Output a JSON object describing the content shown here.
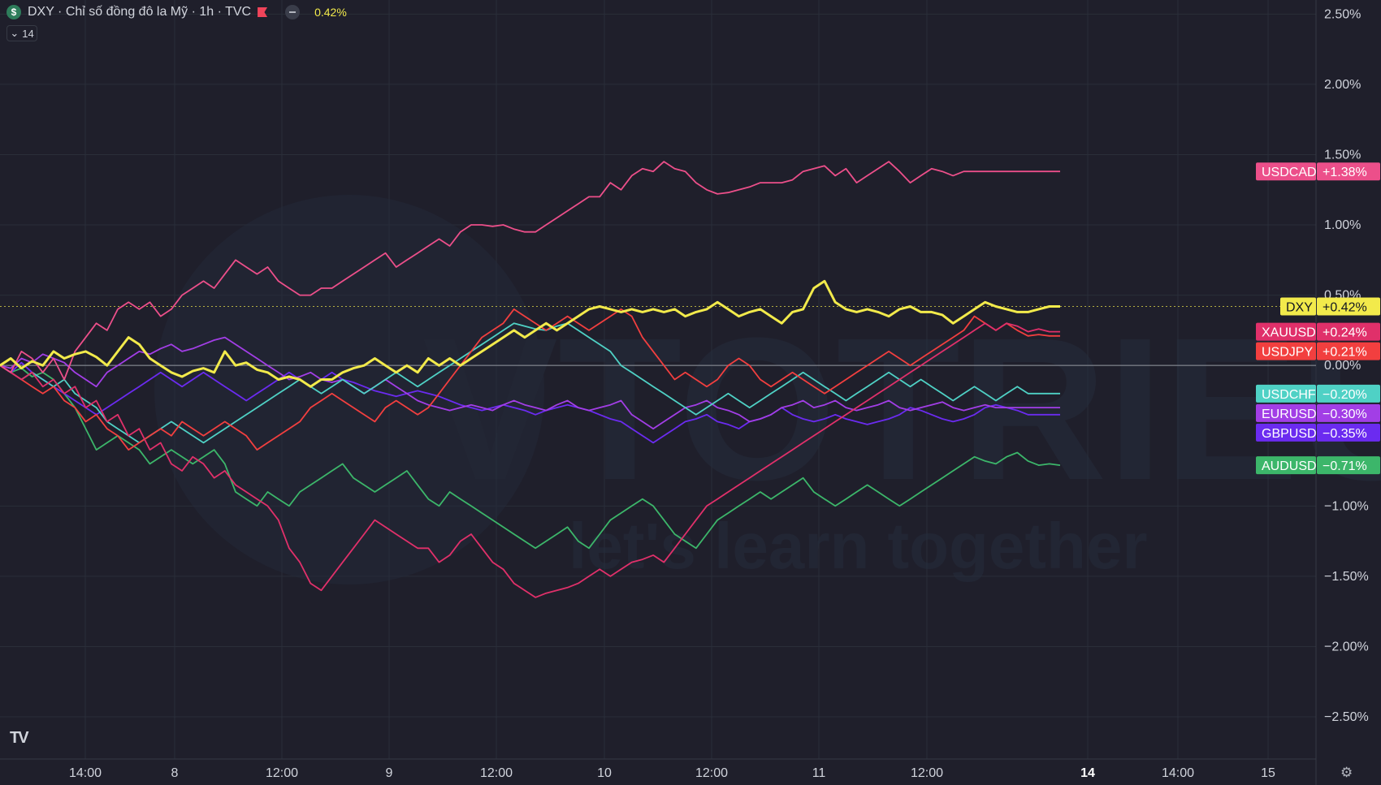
{
  "header": {
    "symbol_badge": "$",
    "title": "DXY · Chỉ số đồng đô la Mỹ · 1h · TVC",
    "change": "0.42%",
    "collapse_count": "14"
  },
  "watermark": {
    "text": "VTOTRIEU",
    "tagline": "let's learn together"
  },
  "chart_data": {
    "type": "line",
    "xlabels": [
      "14:00",
      "8",
      "12:00",
      "9",
      "12:00",
      "10",
      "12:00",
      "11",
      "12:00",
      "14",
      "14:00",
      "15"
    ],
    "bold_xlabels": [
      "14"
    ],
    "ylabels": [
      "2.50%",
      "2.00%",
      "1.50%",
      "1.00%",
      "0.50%",
      "0.00%",
      "−1.00%",
      "−1.50%",
      "−2.00%",
      "−2.50%"
    ],
    "yticks": [
      2.5,
      2.0,
      1.5,
      1.0,
      0.5,
      0.0,
      -1.0,
      -1.5,
      -2.0,
      -2.5
    ],
    "ylim": [
      -2.8,
      2.6
    ],
    "grid": true,
    "n_points": 100,
    "series": [
      {
        "name": "USDCAD",
        "label": "+1.38%",
        "color": "#ec4f8a",
        "values": [
          0.0,
          -0.05,
          0.1,
          0.05,
          -0.05,
          0.05,
          -0.1,
          0.1,
          0.2,
          0.3,
          0.25,
          0.4,
          0.45,
          0.4,
          0.45,
          0.35,
          0.4,
          0.5,
          0.55,
          0.6,
          0.55,
          0.65,
          0.75,
          0.7,
          0.65,
          0.7,
          0.6,
          0.55,
          0.5,
          0.5,
          0.55,
          0.55,
          0.6,
          0.65,
          0.7,
          0.75,
          0.8,
          0.7,
          0.75,
          0.8,
          0.85,
          0.9,
          0.85,
          0.95,
          1.0,
          1.0,
          0.99,
          1.0,
          0.97,
          0.95,
          0.95,
          1.0,
          1.05,
          1.1,
          1.15,
          1.2,
          1.2,
          1.3,
          1.25,
          1.35,
          1.4,
          1.38,
          1.45,
          1.4,
          1.38,
          1.3,
          1.25,
          1.22,
          1.23,
          1.25,
          1.27,
          1.3,
          1.3,
          1.3,
          1.32,
          1.38,
          1.4,
          1.42,
          1.35,
          1.4,
          1.3,
          1.35,
          1.4,
          1.45,
          1.38,
          1.3,
          1.35,
          1.4,
          1.38,
          1.35,
          1.38,
          1.38,
          1.38,
          1.38,
          1.38,
          1.38,
          1.38,
          1.38,
          1.38,
          1.38
        ]
      },
      {
        "name": "DXY",
        "label": "+0.42%",
        "color": "#f2ea4b",
        "values": [
          0.0,
          0.05,
          -0.02,
          0.03,
          0.0,
          0.1,
          0.05,
          0.08,
          0.1,
          0.06,
          0.0,
          0.1,
          0.2,
          0.15,
          0.05,
          0.0,
          -0.05,
          -0.08,
          -0.04,
          -0.02,
          -0.05,
          0.1,
          0.0,
          0.02,
          -0.03,
          -0.05,
          -0.1,
          -0.08,
          -0.1,
          -0.15,
          -0.1,
          -0.1,
          -0.05,
          -0.02,
          0.0,
          0.05,
          0.0,
          -0.05,
          0.0,
          -0.05,
          0.05,
          0.0,
          0.05,
          0.0,
          0.05,
          0.1,
          0.15,
          0.2,
          0.25,
          0.2,
          0.25,
          0.3,
          0.25,
          0.3,
          0.35,
          0.4,
          0.42,
          0.4,
          0.38,
          0.4,
          0.38,
          0.4,
          0.38,
          0.4,
          0.35,
          0.38,
          0.4,
          0.45,
          0.4,
          0.35,
          0.38,
          0.4,
          0.35,
          0.3,
          0.38,
          0.4,
          0.55,
          0.6,
          0.45,
          0.4,
          0.38,
          0.4,
          0.38,
          0.35,
          0.4,
          0.42,
          0.38,
          0.38,
          0.36,
          0.3,
          0.35,
          0.4,
          0.45,
          0.42,
          0.4,
          0.38,
          0.38,
          0.4,
          0.42,
          0.42
        ]
      },
      {
        "name": "XAUUSD",
        "label": "+0.24%",
        "color": "#e0306a",
        "values": [
          0.0,
          -0.05,
          -0.1,
          -0.05,
          -0.15,
          -0.1,
          -0.2,
          -0.15,
          -0.3,
          -0.25,
          -0.4,
          -0.35,
          -0.5,
          -0.45,
          -0.6,
          -0.55,
          -0.7,
          -0.75,
          -0.65,
          -0.7,
          -0.8,
          -0.75,
          -0.85,
          -0.9,
          -0.95,
          -1.0,
          -1.1,
          -1.3,
          -1.4,
          -1.55,
          -1.6,
          -1.5,
          -1.4,
          -1.3,
          -1.2,
          -1.1,
          -1.15,
          -1.2,
          -1.25,
          -1.3,
          -1.3,
          -1.4,
          -1.35,
          -1.25,
          -1.2,
          -1.3,
          -1.4,
          -1.45,
          -1.55,
          -1.6,
          -1.65,
          -1.62,
          -1.6,
          -1.58,
          -1.55,
          -1.5,
          -1.45,
          -1.5,
          -1.45,
          -1.4,
          -1.38,
          -1.35,
          -1.4,
          -1.3,
          -1.2,
          -1.1,
          -1.0,
          -0.95,
          -0.9,
          -0.85,
          -0.8,
          -0.75,
          -0.7,
          -0.65,
          -0.6,
          -0.55,
          -0.5,
          -0.45,
          -0.4,
          -0.35,
          -0.3,
          -0.25,
          -0.2,
          -0.15,
          -0.1,
          -0.05,
          0.0,
          0.05,
          0.1,
          0.15,
          0.2,
          0.25,
          0.3,
          0.25,
          0.3,
          0.28,
          0.24,
          0.26,
          0.24,
          0.24
        ]
      },
      {
        "name": "USDJPY",
        "label": "+0.21%",
        "color": "#f23f3f",
        "values": [
          0.0,
          -0.05,
          -0.1,
          -0.15,
          -0.2,
          -0.15,
          -0.25,
          -0.3,
          -0.4,
          -0.35,
          -0.45,
          -0.5,
          -0.6,
          -0.55,
          -0.5,
          -0.45,
          -0.5,
          -0.4,
          -0.45,
          -0.5,
          -0.45,
          -0.4,
          -0.45,
          -0.5,
          -0.6,
          -0.55,
          -0.5,
          -0.45,
          -0.4,
          -0.3,
          -0.25,
          -0.2,
          -0.25,
          -0.3,
          -0.35,
          -0.4,
          -0.3,
          -0.25,
          -0.3,
          -0.35,
          -0.3,
          -0.2,
          -0.1,
          0.0,
          0.1,
          0.2,
          0.25,
          0.3,
          0.4,
          0.35,
          0.3,
          0.25,
          0.3,
          0.35,
          0.3,
          0.25,
          0.3,
          0.35,
          0.4,
          0.35,
          0.2,
          0.1,
          0.0,
          -0.1,
          -0.05,
          -0.1,
          -0.15,
          -0.1,
          0.0,
          0.05,
          0.0,
          -0.1,
          -0.15,
          -0.1,
          -0.05,
          -0.1,
          -0.15,
          -0.2,
          -0.15,
          -0.1,
          -0.05,
          0.0,
          0.05,
          0.1,
          0.05,
          0.0,
          0.05,
          0.1,
          0.15,
          0.2,
          0.25,
          0.35,
          0.3,
          0.25,
          0.3,
          0.25,
          0.21,
          0.22,
          0.21,
          0.21
        ]
      },
      {
        "name": "USDCHF",
        "label": "−0.20%",
        "color": "#4fd1c5",
        "values": [
          0.0,
          -0.05,
          -0.1,
          -0.05,
          -0.1,
          -0.15,
          -0.1,
          -0.2,
          -0.25,
          -0.3,
          -0.4,
          -0.45,
          -0.5,
          -0.55,
          -0.5,
          -0.45,
          -0.4,
          -0.45,
          -0.5,
          -0.55,
          -0.5,
          -0.45,
          -0.4,
          -0.35,
          -0.3,
          -0.25,
          -0.2,
          -0.15,
          -0.1,
          -0.15,
          -0.2,
          -0.15,
          -0.1,
          -0.15,
          -0.2,
          -0.15,
          -0.1,
          -0.05,
          -0.1,
          -0.15,
          -0.1,
          -0.05,
          0.0,
          0.05,
          0.1,
          0.15,
          0.2,
          0.25,
          0.3,
          0.28,
          0.26,
          0.25,
          0.28,
          0.3,
          0.25,
          0.2,
          0.15,
          0.1,
          0.0,
          -0.05,
          -0.1,
          -0.15,
          -0.2,
          -0.25,
          -0.3,
          -0.35,
          -0.3,
          -0.25,
          -0.2,
          -0.25,
          -0.3,
          -0.25,
          -0.2,
          -0.15,
          -0.1,
          -0.05,
          -0.1,
          -0.15,
          -0.2,
          -0.25,
          -0.2,
          -0.15,
          -0.1,
          -0.05,
          -0.1,
          -0.15,
          -0.1,
          -0.15,
          -0.2,
          -0.25,
          -0.2,
          -0.15,
          -0.2,
          -0.25,
          -0.2,
          -0.15,
          -0.2,
          -0.2,
          -0.2,
          -0.2
        ]
      },
      {
        "name": "EURUSD",
        "label": "−0.30%",
        "color": "#a23ee6",
        "values": [
          0.0,
          -0.02,
          0.05,
          0.02,
          0.08,
          0.05,
          0.02,
          -0.05,
          -0.1,
          -0.15,
          -0.05,
          0.0,
          0.05,
          0.1,
          0.08,
          0.12,
          0.15,
          0.1,
          0.12,
          0.15,
          0.18,
          0.2,
          0.15,
          0.1,
          0.05,
          0.0,
          -0.05,
          -0.1,
          -0.08,
          -0.05,
          -0.1,
          -0.12,
          -0.1,
          -0.15,
          -0.2,
          -0.15,
          -0.1,
          -0.15,
          -0.2,
          -0.25,
          -0.28,
          -0.3,
          -0.32,
          -0.3,
          -0.28,
          -0.3,
          -0.32,
          -0.28,
          -0.25,
          -0.28,
          -0.3,
          -0.32,
          -0.28,
          -0.25,
          -0.3,
          -0.32,
          -0.3,
          -0.28,
          -0.25,
          -0.35,
          -0.4,
          -0.45,
          -0.4,
          -0.35,
          -0.3,
          -0.28,
          -0.25,
          -0.3,
          -0.32,
          -0.35,
          -0.4,
          -0.38,
          -0.35,
          -0.3,
          -0.28,
          -0.25,
          -0.3,
          -0.28,
          -0.25,
          -0.3,
          -0.32,
          -0.3,
          -0.28,
          -0.25,
          -0.3,
          -0.32,
          -0.3,
          -0.28,
          -0.26,
          -0.3,
          -0.32,
          -0.3,
          -0.28,
          -0.3,
          -0.3,
          -0.3,
          -0.3,
          -0.3,
          -0.3,
          -0.3
        ]
      },
      {
        "name": "GBPUSD",
        "label": "−0.35%",
        "color": "#6b2bf0",
        "values": [
          0.0,
          -0.05,
          0.02,
          -0.05,
          -0.1,
          -0.15,
          -0.2,
          -0.25,
          -0.3,
          -0.35,
          -0.3,
          -0.25,
          -0.2,
          -0.15,
          -0.1,
          -0.05,
          -0.1,
          -0.15,
          -0.1,
          -0.05,
          -0.1,
          -0.15,
          -0.2,
          -0.25,
          -0.2,
          -0.15,
          -0.1,
          -0.05,
          -0.1,
          -0.15,
          -0.1,
          -0.05,
          -0.1,
          -0.12,
          -0.15,
          -0.18,
          -0.2,
          -0.22,
          -0.2,
          -0.18,
          -0.2,
          -0.22,
          -0.25,
          -0.28,
          -0.3,
          -0.32,
          -0.3,
          -0.28,
          -0.3,
          -0.32,
          -0.35,
          -0.32,
          -0.3,
          -0.28,
          -0.3,
          -0.32,
          -0.35,
          -0.38,
          -0.4,
          -0.45,
          -0.5,
          -0.55,
          -0.5,
          -0.45,
          -0.4,
          -0.38,
          -0.35,
          -0.4,
          -0.42,
          -0.45,
          -0.4,
          -0.38,
          -0.35,
          -0.3,
          -0.35,
          -0.38,
          -0.4,
          -0.38,
          -0.35,
          -0.38,
          -0.4,
          -0.42,
          -0.4,
          -0.38,
          -0.35,
          -0.3,
          -0.32,
          -0.35,
          -0.38,
          -0.4,
          -0.38,
          -0.35,
          -0.3,
          -0.28,
          -0.3,
          -0.32,
          -0.35,
          -0.35,
          -0.35,
          -0.35
        ]
      },
      {
        "name": "AUDUSD",
        "label": "−0.71%",
        "color": "#3cb66a",
        "values": [
          0.0,
          -0.05,
          -0.02,
          -0.08,
          -0.05,
          -0.1,
          -0.2,
          -0.3,
          -0.45,
          -0.6,
          -0.55,
          -0.5,
          -0.55,
          -0.6,
          -0.7,
          -0.65,
          -0.6,
          -0.65,
          -0.7,
          -0.65,
          -0.6,
          -0.7,
          -0.9,
          -0.95,
          -1.0,
          -0.9,
          -0.95,
          -1.0,
          -0.9,
          -0.85,
          -0.8,
          -0.75,
          -0.7,
          -0.8,
          -0.85,
          -0.9,
          -0.85,
          -0.8,
          -0.75,
          -0.85,
          -0.95,
          -1.0,
          -0.9,
          -0.95,
          -1.0,
          -1.05,
          -1.1,
          -1.15,
          -1.2,
          -1.25,
          -1.3,
          -1.25,
          -1.2,
          -1.15,
          -1.25,
          -1.3,
          -1.2,
          -1.1,
          -1.05,
          -1.0,
          -0.95,
          -1.0,
          -1.1,
          -1.2,
          -1.25,
          -1.3,
          -1.2,
          -1.1,
          -1.05,
          -1.0,
          -0.95,
          -0.9,
          -0.95,
          -0.9,
          -0.85,
          -0.8,
          -0.9,
          -0.95,
          -1.0,
          -0.95,
          -0.9,
          -0.85,
          -0.9,
          -0.95,
          -1.0,
          -0.95,
          -0.9,
          -0.85,
          -0.8,
          -0.75,
          -0.7,
          -0.65,
          -0.68,
          -0.7,
          -0.65,
          -0.62,
          -0.68,
          -0.71,
          -0.7,
          -0.71
        ]
      }
    ]
  }
}
